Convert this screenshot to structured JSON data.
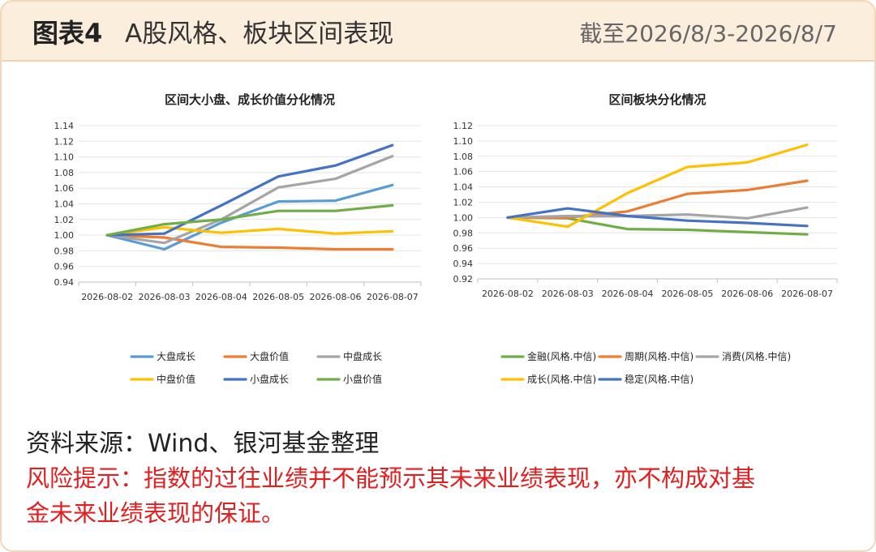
{
  "header": {
    "figure_label": "图表4",
    "title": "A股风格、板块区间表现",
    "date_range": "截至2026/8/3-2026/8/7"
  },
  "chart_data": [
    {
      "type": "line",
      "title": "区间大小盘、成长价值分化情况",
      "categories": [
        "2026-08-02",
        "2026-08-03",
        "2026-08-04",
        "2026-08-05",
        "2026-08-06",
        "2026-08-07"
      ],
      "ylim": [
        0.94,
        1.14
      ],
      "yticks": [
        0.94,
        0.96,
        0.98,
        1.0,
        1.02,
        1.04,
        1.06,
        1.08,
        1.1,
        1.12,
        1.14
      ],
      "grid": true,
      "legend_position": "bottom",
      "series": [
        {
          "name": "大盘成长",
          "color": "#5b9bd5",
          "values": [
            1.0,
            0.982,
            1.016,
            1.043,
            1.044,
            1.064
          ]
        },
        {
          "name": "大盘价值",
          "color": "#ed7d31",
          "values": [
            1.0,
            0.997,
            0.985,
            0.984,
            0.982,
            0.982
          ]
        },
        {
          "name": "中盘成长",
          "color": "#a5a5a5",
          "values": [
            1.0,
            0.99,
            1.02,
            1.061,
            1.072,
            1.101
          ]
        },
        {
          "name": "中盘价值",
          "color": "#ffc000",
          "values": [
            1.0,
            1.01,
            1.003,
            1.008,
            1.002,
            1.005
          ]
        },
        {
          "name": "小盘成长",
          "color": "#4472c4",
          "values": [
            1.0,
            1.002,
            1.038,
            1.075,
            1.089,
            1.115
          ]
        },
        {
          "name": "小盘价值",
          "color": "#70ad47",
          "values": [
            1.0,
            1.014,
            1.02,
            1.031,
            1.031,
            1.038
          ]
        }
      ]
    },
    {
      "type": "line",
      "title": "区间板块分化情况",
      "categories": [
        "2026-08-02",
        "2026-08-03",
        "2026-08-04",
        "2026-08-05",
        "2026-08-06",
        "2026-08-07"
      ],
      "ylim": [
        0.92,
        1.12
      ],
      "yticks": [
        0.92,
        0.94,
        0.96,
        0.98,
        1.0,
        1.02,
        1.04,
        1.06,
        1.08,
        1.1,
        1.12
      ],
      "grid": true,
      "legend_position": "bottom",
      "series": [
        {
          "name": "金融(风格.中信)",
          "color": "#70ad47",
          "values": [
            1.0,
            0.999,
            0.985,
            0.984,
            0.981,
            0.978
          ]
        },
        {
          "name": "周期(风格.中信)",
          "color": "#ed7d31",
          "values": [
            1.0,
            1.0,
            1.008,
            1.031,
            1.036,
            1.048
          ]
        },
        {
          "name": "消费(风格.中信)",
          "color": "#a5a5a5",
          "values": [
            1.0,
            1.002,
            1.002,
            1.004,
            0.999,
            1.013
          ]
        },
        {
          "name": "成长(风格.中信)",
          "color": "#ffc000",
          "values": [
            1.0,
            0.988,
            1.032,
            1.066,
            1.072,
            1.095
          ]
        },
        {
          "name": "稳定(风格.中信)",
          "color": "#4472c4",
          "values": [
            1.0,
            1.012,
            1.002,
            0.996,
            0.993,
            0.989
          ]
        }
      ]
    }
  ],
  "footer": {
    "source": "资料来源：Wind、银河基金整理",
    "risk_line1": "风险提示：指数的过往业绩并不能预示其未来业绩表现，亦不构成对基",
    "risk_line2": "金未来业绩表现的保证。"
  }
}
